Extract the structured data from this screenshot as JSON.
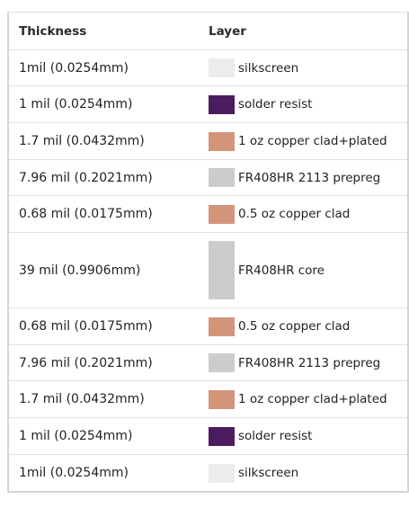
{
  "header": {
    "thickness": "Thickness",
    "layer": "Layer"
  },
  "rows": [
    {
      "thickness": "1mil (0.0254mm)",
      "layer": "silkscreen",
      "color": "#ececec"
    },
    {
      "thickness": "1 mil (0.0254mm)",
      "layer": "solder resist",
      "color": "#4b1d5f"
    },
    {
      "thickness": "1.7 mil (0.0432mm)",
      "layer": "1 oz copper clad+plated",
      "color": "#d2957a"
    },
    {
      "thickness": "7.96 mil (0.2021mm)",
      "layer": "FR408HR 2113 prepreg",
      "color": "#cccccc"
    },
    {
      "thickness": "0.68 mil (0.0175mm)",
      "layer": "0.5 oz copper clad",
      "color": "#d2957a"
    },
    {
      "thickness": "39 mil (0.9906mm)",
      "layer": "FR408HR core",
      "color": "#cccccc"
    },
    {
      "thickness": "0.68 mil (0.0175mm)",
      "layer": "0.5 oz copper clad",
      "color": "#d2957a"
    },
    {
      "thickness": "7.96 mil (0.2021mm)",
      "layer": "FR408HR 2113 prepreg",
      "color": "#cccccc"
    },
    {
      "thickness": "1.7 mil (0.0432mm)",
      "layer": "1 oz copper clad+plated",
      "color": "#d2957a"
    },
    {
      "thickness": "1 mil (0.0254mm)",
      "layer": "solder resist",
      "color": "#4b1d5f"
    },
    {
      "thickness": "1mil (0.0254mm)",
      "layer": "silkscreen",
      "color": "#ececec"
    }
  ]
}
